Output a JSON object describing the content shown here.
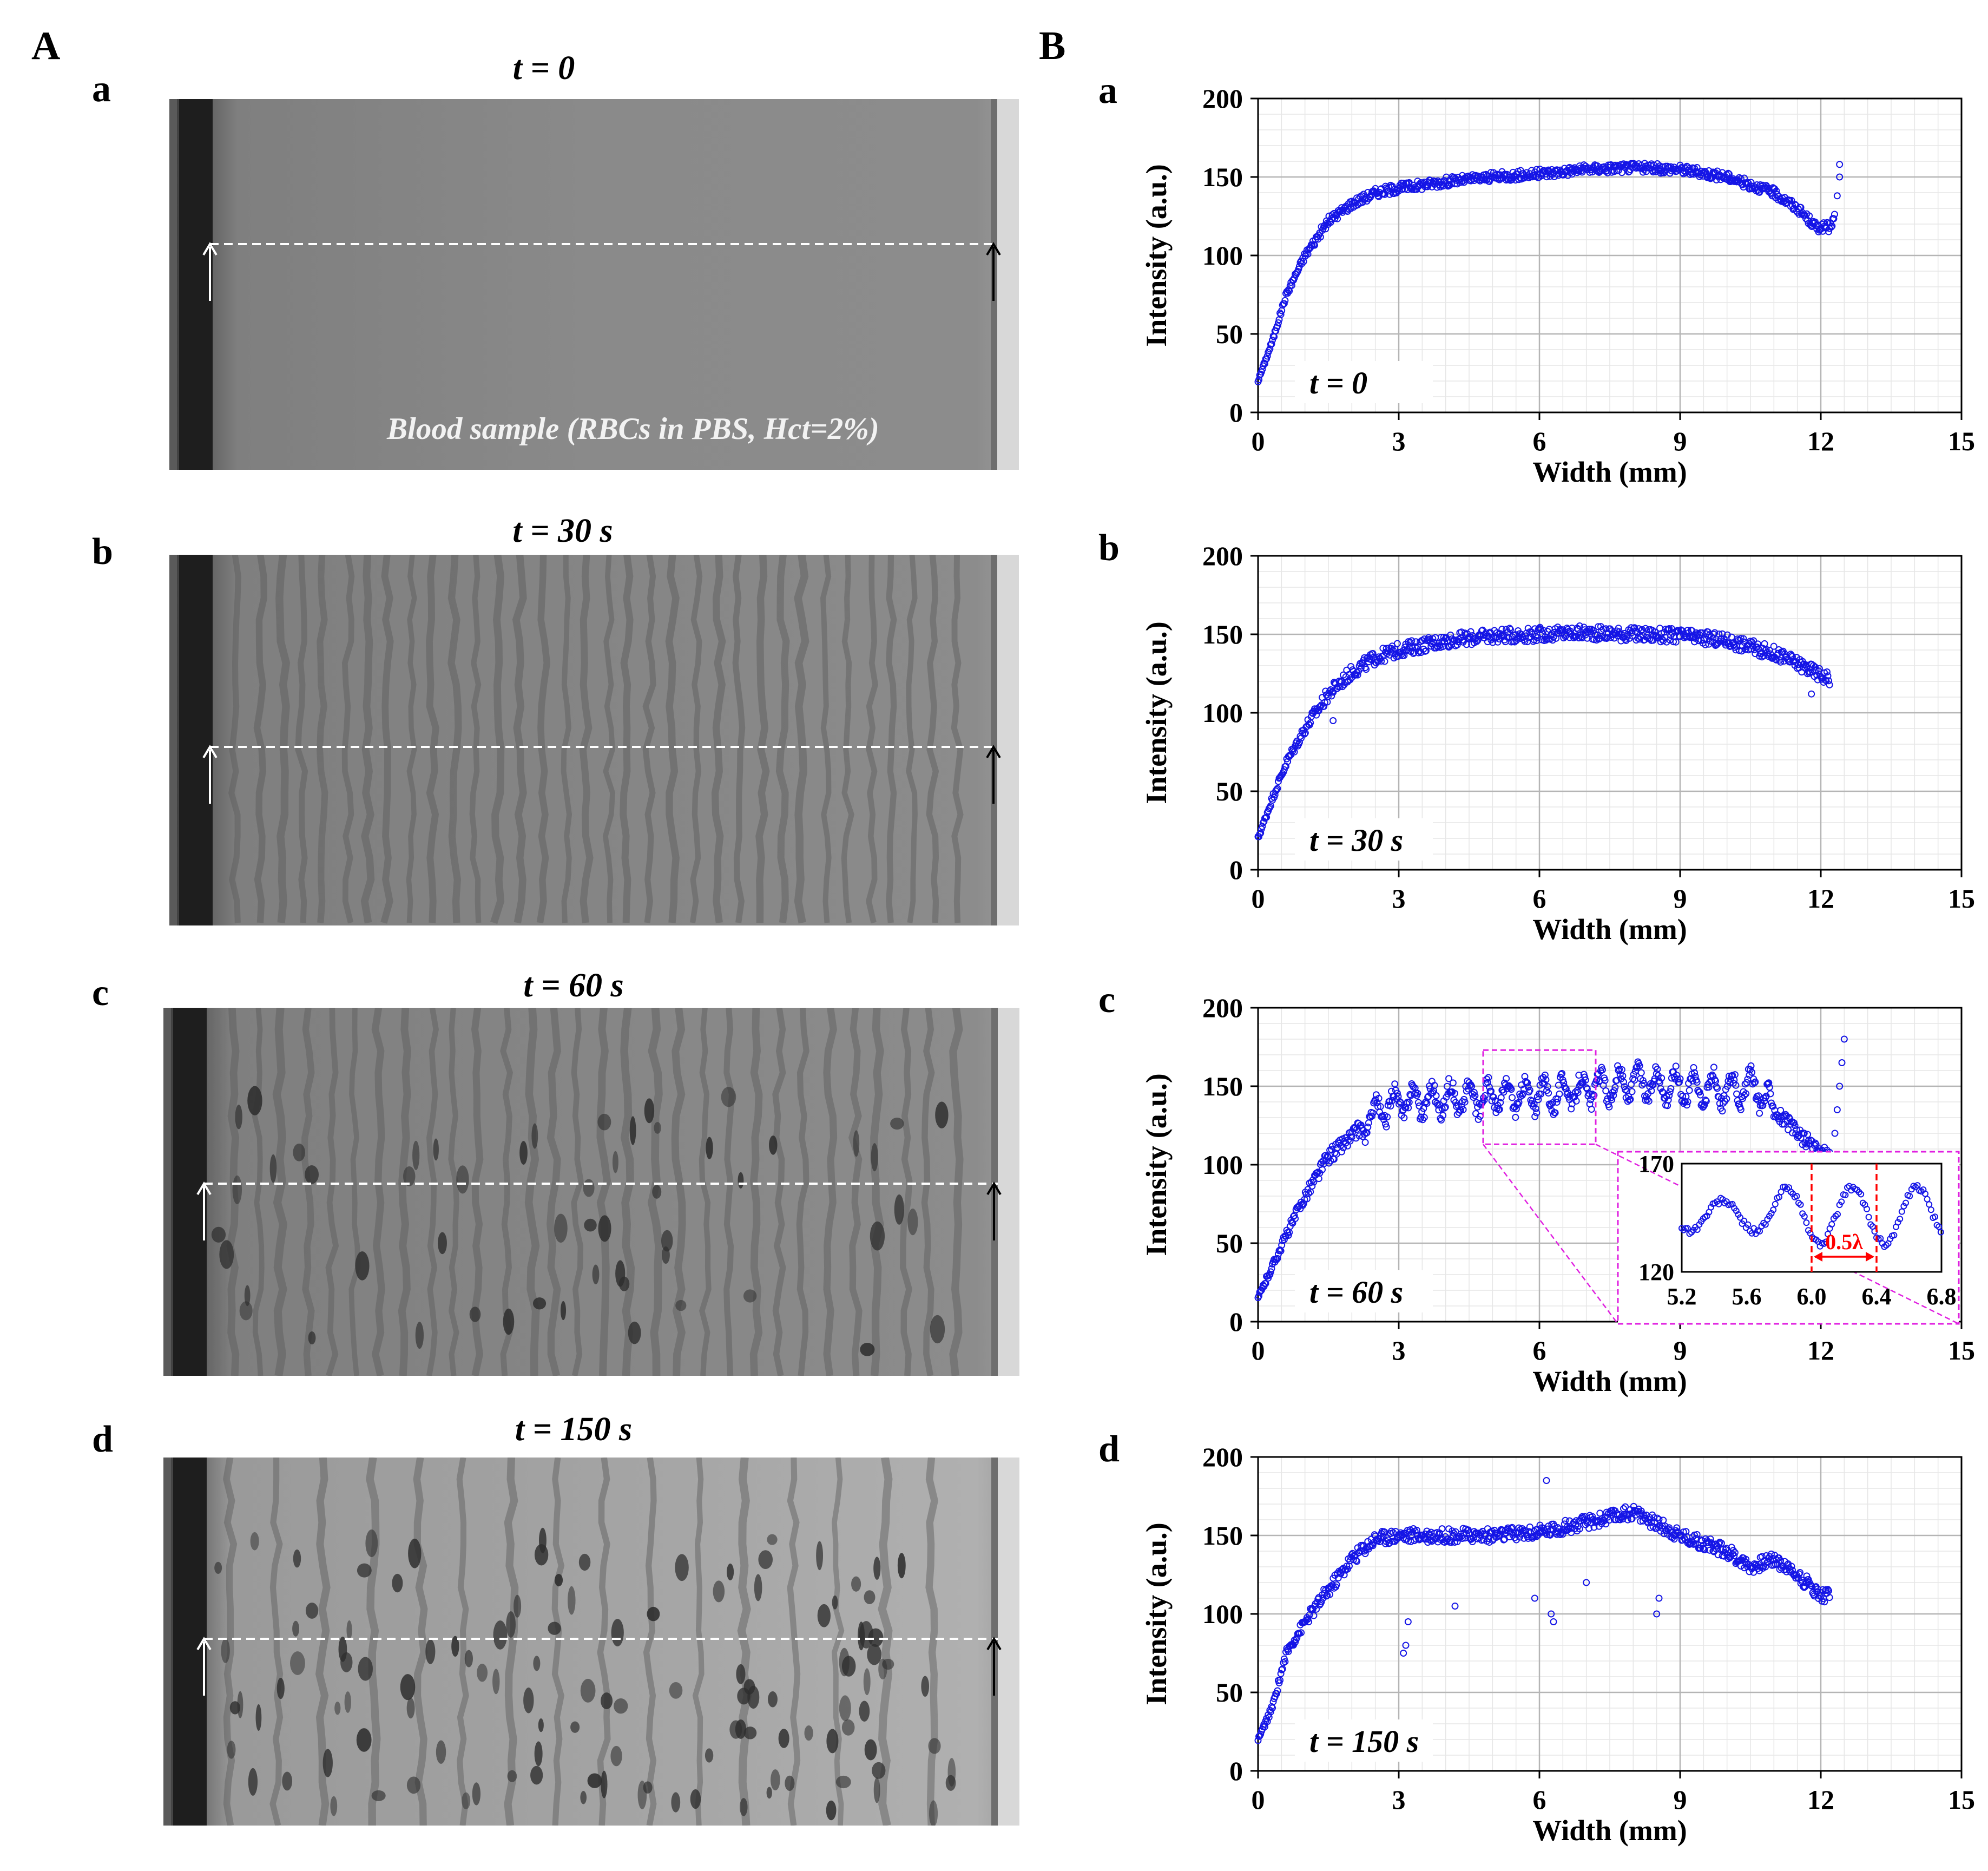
{
  "figure": {
    "panel_A_label": "A",
    "panel_B_label": "B"
  },
  "micrographs": [
    {
      "sub": "a",
      "title": "t = 0",
      "caption": "Blood sample (RBCs in PBS, Hct=2%)"
    },
    {
      "sub": "b",
      "title": "t = 30 s",
      "caption": ""
    },
    {
      "sub": "c",
      "title": "t = 60 s",
      "caption": ""
    },
    {
      "sub": "d",
      "title": "t = 150 s",
      "caption": ""
    }
  ],
  "colors": {
    "marker": "#1515e6",
    "grid": "#c8c8c8",
    "inset_border": "#e020e0",
    "annotation_red": "#ff0000"
  },
  "chart_data": [
    {
      "type": "scatter",
      "sub": "a",
      "label": "t = 0",
      "xlabel": "Width (mm)",
      "ylabel": "Intensity (a.u.)",
      "xlim": [
        0,
        15
      ],
      "ylim": [
        0,
        200
      ],
      "xticks": [
        "0",
        "3",
        "6",
        "9",
        "12",
        "15"
      ],
      "yticks": [
        "0",
        "50",
        "100",
        "150",
        "200"
      ],
      "profile": [
        [
          0,
          20
        ],
        [
          0.3,
          45
        ],
        [
          0.6,
          75
        ],
        [
          1.0,
          100
        ],
        [
          1.5,
          122
        ],
        [
          2.0,
          133
        ],
        [
          2.5,
          140
        ],
        [
          3.0,
          143
        ],
        [
          4.0,
          147
        ],
        [
          5.0,
          150
        ],
        [
          6.0,
          152
        ],
        [
          7.0,
          155
        ],
        [
          8.0,
          156
        ],
        [
          9.0,
          155
        ],
        [
          10.0,
          150
        ],
        [
          11.0,
          140
        ],
        [
          11.5,
          130
        ],
        [
          11.9,
          118
        ],
        [
          12.2,
          118
        ],
        [
          12.3,
          125
        ]
      ],
      "noise": 6,
      "extra_points": [
        [
          12.4,
          150
        ],
        [
          12.4,
          158
        ],
        [
          12.35,
          138
        ]
      ]
    },
    {
      "type": "scatter",
      "sub": "b",
      "label": "t = 30 s",
      "xlabel": "Width (mm)",
      "ylabel": "Intensity (a.u.)",
      "xlim": [
        0,
        15
      ],
      "ylim": [
        0,
        200
      ],
      "xticks": [
        "0",
        "3",
        "6",
        "9",
        "12",
        "15"
      ],
      "yticks": [
        "0",
        "50",
        "100",
        "150",
        "200"
      ],
      "profile": [
        [
          0,
          20
        ],
        [
          0.3,
          45
        ],
        [
          0.6,
          68
        ],
        [
          1.0,
          90
        ],
        [
          1.5,
          112
        ],
        [
          2.0,
          126
        ],
        [
          2.5,
          135
        ],
        [
          3.0,
          140
        ],
        [
          4.0,
          146
        ],
        [
          5.0,
          149
        ],
        [
          6.0,
          150
        ],
        [
          7.0,
          151
        ],
        [
          8.0,
          150
        ],
        [
          9.0,
          149
        ],
        [
          10.0,
          146
        ],
        [
          11.0,
          138
        ],
        [
          11.6,
          130
        ],
        [
          12.0,
          124
        ],
        [
          12.2,
          122
        ]
      ],
      "noise": 9,
      "extra_points": [
        [
          11.8,
          112
        ],
        [
          1.6,
          95
        ]
      ]
    },
    {
      "type": "scatter",
      "sub": "c",
      "label": "t = 60 s",
      "xlabel": "Width (mm)",
      "ylabel": "Intensity (a.u.)",
      "xlim": [
        0,
        15
      ],
      "ylim": [
        0,
        200
      ],
      "xticks": [
        "0",
        "3",
        "6",
        "9",
        "12",
        "15"
      ],
      "yticks": [
        "0",
        "50",
        "100",
        "150",
        "200"
      ],
      "profile": [
        [
          0,
          15
        ],
        [
          0.3,
          35
        ],
        [
          0.6,
          55
        ],
        [
          1.0,
          80
        ],
        [
          1.5,
          105
        ],
        [
          2.0,
          118
        ],
        [
          2.5,
          133
        ],
        [
          3.0,
          140
        ],
        [
          4.0,
          142
        ],
        [
          5.0,
          143
        ],
        [
          6.0,
          144
        ],
        [
          7.0,
          148
        ],
        [
          8.0,
          152
        ],
        [
          9.0,
          150
        ],
        [
          10.0,
          148
        ],
        [
          10.6,
          150
        ],
        [
          11.0,
          135
        ],
        [
          11.5,
          120
        ],
        [
          12.0,
          108
        ],
        [
          12.2,
          106
        ]
      ],
      "noise": 10,
      "oscillate": true,
      "extra_points": [
        [
          12.3,
          120
        ],
        [
          12.35,
          135
        ],
        [
          12.4,
          150
        ],
        [
          12.45,
          165
        ],
        [
          12.5,
          180
        ]
      ],
      "highlight_box": {
        "x": [
          4.8,
          7.2
        ],
        "y": [
          113,
          173
        ]
      },
      "inset": {
        "xlim": [
          5.2,
          6.8
        ],
        "ylim": [
          120,
          170
        ],
        "xticks": [
          "5.2",
          "5.6",
          "6.0",
          "6.4",
          "6.8"
        ],
        "yticks": [
          "120",
          "170"
        ],
        "annotation": "0.5λ",
        "dashed_x": [
          6.0,
          6.4
        ]
      }
    },
    {
      "type": "scatter",
      "sub": "d",
      "label": "t = 150 s",
      "xlabel": "Width (mm)",
      "ylabel": "Intensity (a.u.)",
      "xlim": [
        0,
        15
      ],
      "ylim": [
        0,
        200
      ],
      "xticks": [
        "0",
        "3",
        "6",
        "9",
        "12",
        "15"
      ],
      "yticks": [
        "0",
        "50",
        "100",
        "150",
        "200"
      ],
      "profile": [
        [
          0,
          20
        ],
        [
          0.3,
          40
        ],
        [
          0.6,
          75
        ],
        [
          1.0,
          95
        ],
        [
          1.5,
          115
        ],
        [
          2.0,
          135
        ],
        [
          2.5,
          148
        ],
        [
          3.0,
          150
        ],
        [
          4.0,
          150
        ],
        [
          5.0,
          150
        ],
        [
          6.0,
          152
        ],
        [
          7.0,
          158
        ],
        [
          8.0,
          165
        ],
        [
          9.0,
          150
        ],
        [
          10.0,
          140
        ],
        [
          10.5,
          130
        ],
        [
          11.0,
          135
        ],
        [
          11.5,
          125
        ],
        [
          12.0,
          112
        ],
        [
          12.2,
          112
        ]
      ],
      "noise": 9,
      "extra_points": [
        [
          3.1,
          75
        ],
        [
          3.15,
          80
        ],
        [
          3.2,
          95
        ],
        [
          6.15,
          185
        ],
        [
          6.3,
          95
        ],
        [
          6.25,
          100
        ],
        [
          8.5,
          100
        ],
        [
          8.55,
          110
        ],
        [
          5.9,
          110
        ],
        [
          4.2,
          105
        ],
        [
          7.0,
          120
        ]
      ]
    }
  ]
}
